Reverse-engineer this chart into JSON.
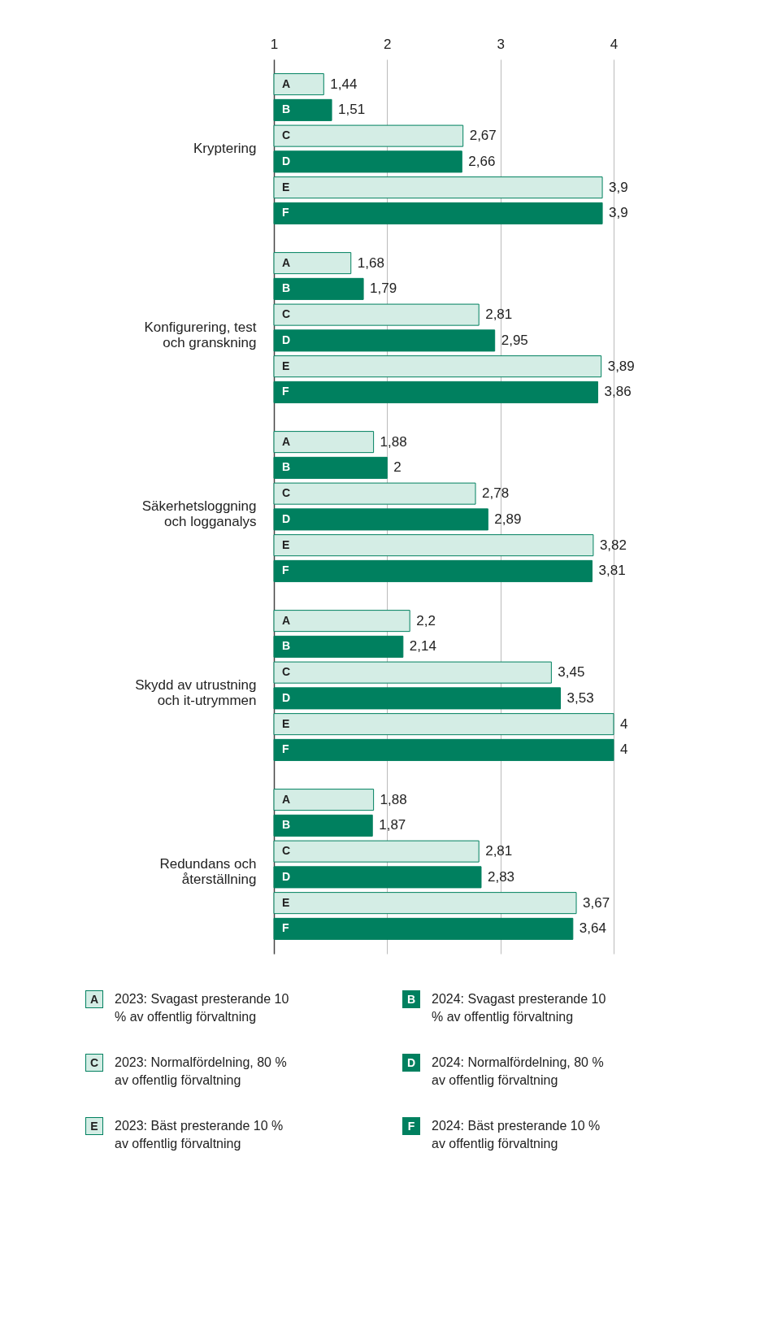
{
  "chart_data": {
    "type": "bar",
    "orientation": "horizontal",
    "categories": [
      "Kryptering",
      "Konfigurering, test och granskning",
      "Säkerhetsloggning och logganalys",
      "Skydd av utrustning och it-utrymmen",
      "Redundans och återställning"
    ],
    "series": [
      {
        "name": "2023: Svagast presterande 10 % av offentlig förvaltning",
        "color": "#d4ede5",
        "values": [
          1.44,
          1.68,
          1.88,
          2.2,
          1.88
        ],
        "value_labels": [
          "1,44",
          "1,68",
          "1,88",
          "2,2",
          "1,88"
        ]
      },
      {
        "name": "2024: Svagast presterande 10 % av offentlig förvaltning",
        "color": "#00805f",
        "values": [
          1.51,
          1.79,
          2,
          2.14,
          1.87
        ],
        "value_labels": [
          "1,51",
          "1,79",
          "2",
          "2,14",
          "1,87"
        ]
      },
      {
        "name": "2023: Normalfördelning, 80 % av offentlig förvaltning",
        "color": "#d4ede5",
        "values": [
          2.67,
          2.81,
          2.78,
          3.45,
          2.81
        ],
        "value_labels": [
          "2,67",
          "2,81",
          "2,78",
          "3,45",
          "2,81"
        ]
      },
      {
        "name": "2024: Normalfördelning, 80 % av offentlig förvaltning",
        "color": "#00805f",
        "values": [
          2.66,
          2.95,
          2.89,
          3.53,
          2.83
        ],
        "value_labels": [
          "2,66",
          "2,95",
          "2,89",
          "3,53",
          "2,83"
        ]
      },
      {
        "name": "2023: Bäst presterande 10 % av offentlig förvaltning",
        "color": "#d4ede5",
        "values": [
          3.9,
          3.89,
          3.82,
          4,
          3.67
        ],
        "value_labels": [
          "3,9",
          "3,89",
          "3,82",
          "4",
          "3,67"
        ]
      },
      {
        "name": "2024: Bäst presterande 10 % av offentlig förvaltning",
        "color": "#00805f",
        "values": [
          3.9,
          3.86,
          3.81,
          4,
          3.64
        ],
        "value_labels": [
          "3,9",
          "3,86",
          "3,81",
          "4",
          "3,64"
        ]
      }
    ],
    "annotations": [
      "A",
      "B",
      "C",
      "D",
      "E",
      "F"
    ],
    "xlim": [
      1,
      4
    ],
    "xticks": [
      1,
      2,
      3,
      4
    ],
    "grid": "x",
    "legend": "bottom"
  }
}
